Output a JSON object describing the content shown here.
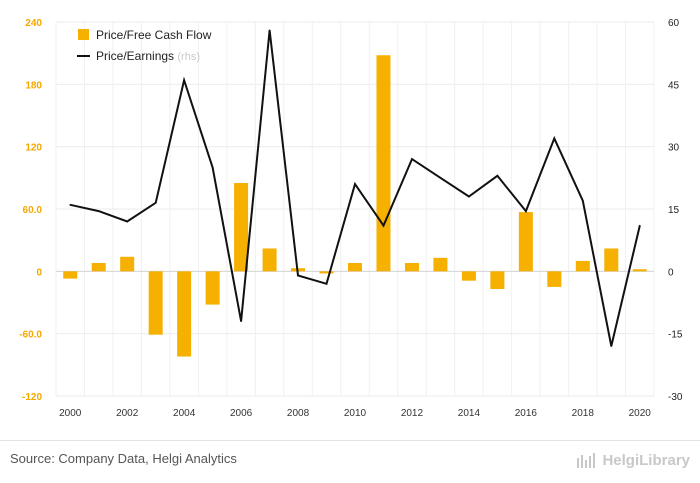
{
  "chart_data": {
    "type": "bar+line",
    "categories": [
      "2000",
      "2001",
      "2002",
      "2003",
      "2004",
      "2005",
      "2006",
      "2007",
      "2008",
      "2009",
      "2010",
      "2011",
      "2012",
      "2013",
      "2014",
      "2015",
      "2016",
      "2017",
      "2018",
      "2019",
      "2020"
    ],
    "x_tick_labels": [
      "2000",
      "2002",
      "2004",
      "2006",
      "2008",
      "2010",
      "2012",
      "2014",
      "2016",
      "2018",
      "2020"
    ],
    "series": [
      {
        "name": "Price/Free Cash Flow",
        "type": "bar",
        "axis": "left",
        "color": "#f5b000",
        "values": [
          -7,
          8,
          14,
          -61,
          -82,
          -32,
          85,
          22,
          3,
          -2,
          8,
          208,
          8,
          13,
          -9,
          -17,
          57,
          -15,
          10,
          22,
          2
        ]
      },
      {
        "name": "Price/Earnings",
        "name_suffix": "(rhs)",
        "type": "line",
        "axis": "right",
        "color": "#111111",
        "values": [
          16,
          14.5,
          12,
          16.5,
          46,
          25,
          -12,
          58,
          -1,
          -3,
          21,
          11,
          27,
          22.5,
          18,
          23,
          14.5,
          32,
          17,
          -18,
          11
        ]
      }
    ],
    "y_left": {
      "min": -120,
      "max": 240,
      "ticks": [
        "-120",
        "-60.0",
        "0",
        "60.0",
        "120",
        "180",
        "240"
      ],
      "color": "#f5a800"
    },
    "y_right": {
      "min": -30,
      "max": 60,
      "ticks": [
        "-30",
        "-15",
        "0",
        "15",
        "30",
        "45",
        "60"
      ]
    },
    "grid": true,
    "legend_position": "top-left"
  },
  "footer": {
    "source": "Source: Company Data, Helgi Analytics",
    "brand": "HelgiLibrary"
  }
}
